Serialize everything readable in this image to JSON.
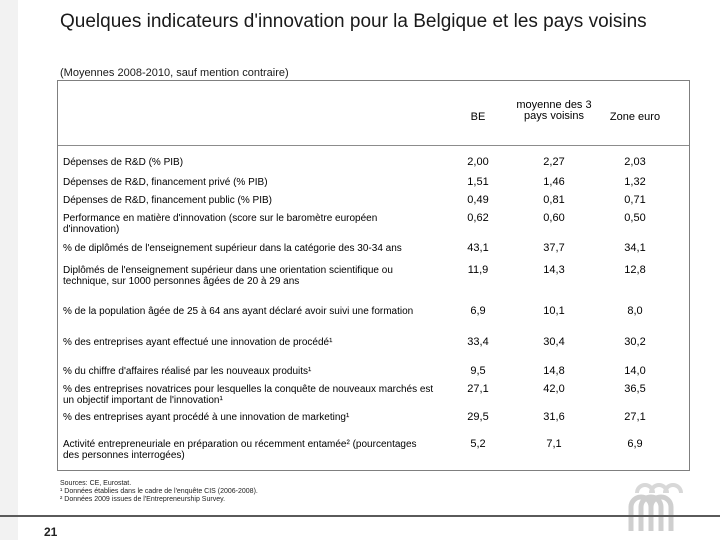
{
  "title": "Quelques indicateurs d'innovation pour la Belgique et les pays voisins",
  "subtitle": "(Moyennes 2008-2010, sauf mention contraire)",
  "columns": [
    {
      "label": "BE"
    },
    {
      "label": "moyenne des 3 pays voisins"
    },
    {
      "label": "Zone euro"
    }
  ],
  "rows": [
    {
      "label": "Dépenses de R&D (% PIB)",
      "be": "2,00",
      "avg": "2,27",
      "euro": "2,03"
    },
    {
      "label": "Dépenses de R&D, financement privé (% PIB)",
      "be": "1,51",
      "avg": "1,46",
      "euro": "1,32"
    },
    {
      "label": "Dépenses de R&D, financement public (% PIB)",
      "be": "0,49",
      "avg": "0,81",
      "euro": "0,71"
    },
    {
      "label": "Performance en matière d'innovation (score sur le baromètre européen d'innovation)",
      "be": "0,62",
      "avg": "0,60",
      "euro": "0,50"
    },
    {
      "label": "% de diplômés de l'enseignement supérieur dans la catégorie des 30-34 ans",
      "be": "43,1",
      "avg": "37,7",
      "euro": "34,1"
    },
    {
      "label": "Diplômés de l'enseignement supérieur dans une orientation scientifique ou technique, sur 1000 personnes âgées de 20 à 29 ans",
      "be": "11,9",
      "avg": "14,3",
      "euro": "12,8"
    },
    {
      "label": "% de la population âgée de 25 à 64 ans ayant déclaré avoir suivi une formation",
      "be": "6,9",
      "avg": "10,1",
      "euro": "8,0"
    },
    {
      "label": "% des entreprises ayant effectué une innovation de procédé¹",
      "be": "33,4",
      "avg": "30,4",
      "euro": "30,2"
    },
    {
      "label": "% du chiffre d'affaires réalisé par les nouveaux produits¹",
      "be": "9,5",
      "avg": "14,8",
      "euro": "14,0"
    },
    {
      "label": "% des entreprises novatrices pour lesquelles la conquête de nouveaux marchés est un objectif important de l'innovation¹",
      "be": "27,1",
      "avg": "42,0",
      "euro": "36,5"
    },
    {
      "label": "% des entreprises ayant procédé à une innovation de marketing¹",
      "be": "29,5",
      "avg": "31,6",
      "euro": "27,1"
    },
    {
      "label": "Activité entrepreneuriale en préparation ou récemment entamée² (pourcentages des personnes interrogées)",
      "be": "5,2",
      "avg": "7,1",
      "euro": "6,9"
    }
  ],
  "sources": {
    "line1": "Sources: CE, Eurostat.",
    "line2": "¹ Données établies dans le cadre de l'enquête CIS (2006-2008).",
    "line3": "² Données 2009 issues de l'Entrepreneurship Survey."
  },
  "footer": {
    "page_number": "21"
  },
  "colors": {
    "frame": "#7f7f7f",
    "footer_line": "#5a5a5a",
    "logo": "#cfcfcf"
  },
  "icons": {
    "logo": "institution-logo-icon"
  }
}
